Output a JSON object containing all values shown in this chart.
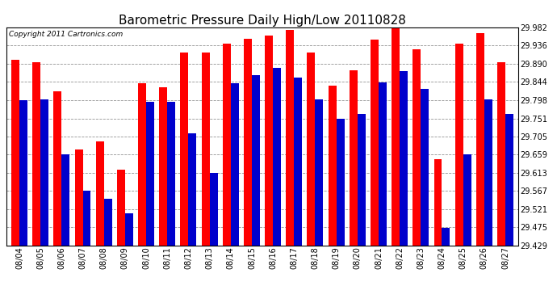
{
  "title": "Barometric Pressure Daily High/Low 20110828",
  "copyright": "Copyright 2011 Cartronics.com",
  "dates": [
    "08/04",
    "08/05",
    "08/06",
    "08/07",
    "08/08",
    "08/09",
    "08/10",
    "08/11",
    "08/12",
    "08/13",
    "08/14",
    "08/15",
    "08/16",
    "08/17",
    "08/18",
    "08/19",
    "08/20",
    "08/21",
    "08/22",
    "08/23",
    "08/24",
    "08/25",
    "08/26",
    "08/27"
  ],
  "highs": [
    29.9,
    29.893,
    29.82,
    29.672,
    29.693,
    29.62,
    29.84,
    29.83,
    29.918,
    29.918,
    29.94,
    29.952,
    29.96,
    29.975,
    29.918,
    29.834,
    29.872,
    29.95,
    29.982,
    29.926,
    29.648,
    29.94,
    29.968,
    29.893
  ],
  "lows": [
    29.797,
    29.799,
    29.66,
    29.567,
    29.548,
    29.51,
    29.793,
    29.793,
    29.713,
    29.613,
    29.84,
    29.86,
    29.88,
    29.855,
    29.799,
    29.751,
    29.762,
    29.843,
    29.87,
    29.826,
    29.474,
    29.66,
    29.799,
    29.763
  ],
  "high_color": "#ff0000",
  "low_color": "#0000cc",
  "background_color": "#ffffff",
  "grid_color": "#888888",
  "ylim_min": 29.429,
  "ylim_max": 29.982,
  "yticks": [
    29.429,
    29.475,
    29.521,
    29.567,
    29.613,
    29.659,
    29.705,
    29.751,
    29.798,
    29.844,
    29.89,
    29.936,
    29.982
  ],
  "title_fontsize": 11,
  "tick_fontsize": 7,
  "copyright_fontsize": 6.5,
  "bar_width": 0.38
}
